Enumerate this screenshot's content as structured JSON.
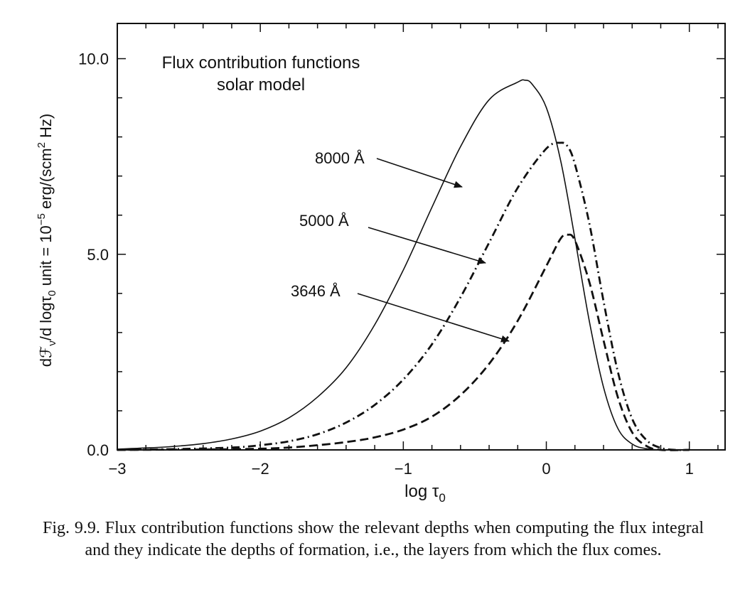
{
  "chart_data": {
    "type": "line",
    "title": "Flux contribution functions",
    "subtitle": "solar model",
    "xlabel": "log τ",
    "xlabel_sub": "0",
    "ylabel_parts": {
      "a": "dℱ",
      "b": "ν",
      "c": "/d log",
      "d": "τ",
      "e": "0",
      "f": " unit = 10",
      "g": "−5",
      "h": " erg/(scm",
      "i": "2",
      "j": " Hz)"
    },
    "xlim": [
      -3,
      1.25
    ],
    "ylim": [
      0,
      10.9
    ],
    "x_ticks": [
      {
        "value": -3,
        "label": "−3"
      },
      {
        "value": -2,
        "label": "−2"
      },
      {
        "value": -1,
        "label": "−1"
      },
      {
        "value": 0,
        "label": "0"
      },
      {
        "value": 1,
        "label": "1"
      }
    ],
    "y_ticks": [
      {
        "value": 0,
        "label": "0.0"
      },
      {
        "value": 5,
        "label": "5.0"
      },
      {
        "value": 10,
        "label": "10.0"
      }
    ],
    "x_minor_step": 0.2,
    "y_minor_step": 1.0,
    "grid": false,
    "series": [
      {
        "name": "8000 Å",
        "style": "solid",
        "x": [
          -3.0,
          -2.8,
          -2.6,
          -2.4,
          -2.2,
          -2.0,
          -1.8,
          -1.6,
          -1.4,
          -1.2,
          -1.0,
          -0.8,
          -0.6,
          -0.4,
          -0.2,
          -0.15,
          -0.1,
          0.0,
          0.1,
          0.2,
          0.3,
          0.4,
          0.5,
          0.6,
          0.7,
          0.8,
          1.0
        ],
        "y": [
          0.02,
          0.05,
          0.09,
          0.16,
          0.28,
          0.48,
          0.82,
          1.35,
          2.1,
          3.2,
          4.6,
          6.2,
          7.75,
          8.95,
          9.4,
          9.45,
          9.35,
          8.75,
          7.4,
          5.4,
          3.3,
          1.6,
          0.55,
          0.15,
          0.03,
          0.0,
          0.0
        ]
      },
      {
        "name": "5000 Å",
        "style": "dashdot",
        "x": [
          -3.0,
          -2.6,
          -2.2,
          -2.0,
          -1.8,
          -1.6,
          -1.4,
          -1.2,
          -1.0,
          -0.8,
          -0.6,
          -0.4,
          -0.2,
          0.0,
          0.1,
          0.15,
          0.2,
          0.3,
          0.4,
          0.5,
          0.6,
          0.7,
          0.8,
          0.9,
          1.0
        ],
        "y": [
          0.0,
          0.02,
          0.06,
          0.12,
          0.22,
          0.4,
          0.7,
          1.15,
          1.8,
          2.7,
          3.9,
          5.3,
          6.7,
          7.7,
          7.85,
          7.75,
          7.3,
          5.8,
          3.8,
          2.0,
          0.8,
          0.25,
          0.05,
          0.0,
          0.0
        ]
      },
      {
        "name": "3646 Å",
        "style": "dashed",
        "x": [
          -3.0,
          -2.4,
          -2.0,
          -1.8,
          -1.6,
          -1.4,
          -1.2,
          -1.0,
          -0.8,
          -0.6,
          -0.4,
          -0.2,
          0.0,
          0.1,
          0.15,
          0.2,
          0.3,
          0.4,
          0.5,
          0.6,
          0.7,
          0.8,
          1.0
        ],
        "y": [
          0.0,
          0.01,
          0.03,
          0.06,
          0.12,
          0.2,
          0.32,
          0.52,
          0.85,
          1.4,
          2.2,
          3.3,
          4.7,
          5.4,
          5.5,
          5.35,
          4.3,
          2.8,
          1.35,
          0.45,
          0.1,
          0.0,
          0.0
        ]
      }
    ],
    "annotations": [
      {
        "label": "8000 Å",
        "series": 0
      },
      {
        "label": "5000 Å",
        "series": 1
      },
      {
        "label": "3646 Å",
        "series": 2
      }
    ]
  },
  "caption": "Fig. 9.9.   Flux contribution functions show the relevant depths when computing the flux integral and they indicate the depths of formation, i.e., the layers from which the flux comes."
}
